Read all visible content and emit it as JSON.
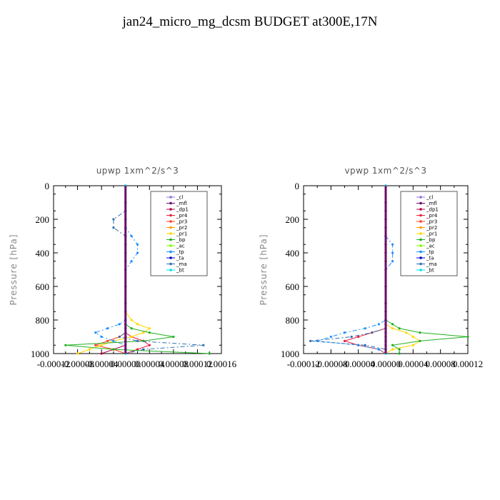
{
  "title": "jan24_micro_mg_dcsm  BUDGET at300E,17N",
  "chart_data": [
    {
      "type": "line",
      "title": "upwp   1xm^2/s^3",
      "ylabel": "Pressure [hPa]",
      "xlabel": "",
      "xlim": [
        -0.00012,
        0.00016
      ],
      "ylim": [
        1000,
        0
      ],
      "x_ticks": [
        "-0.00012",
        "-0.00008",
        "-0.00004",
        "0.00000",
        "0.00004",
        "0.00008",
        "0.00012",
        "0.00016"
      ],
      "y_ticks": [
        "0",
        "200",
        "400",
        "600",
        "800",
        "1000"
      ],
      "legend_position": "top-right",
      "pressure_levels": [
        0,
        100,
        150,
        200,
        250,
        300,
        350,
        400,
        450,
        500,
        600,
        700,
        750,
        800,
        825,
        850,
        875,
        900,
        925,
        950,
        975,
        1000
      ],
      "series": [
        {
          "name": "_cl",
          "color": "#9370db",
          "values": [
            0,
            0,
            0,
            0,
            0,
            0,
            0,
            0,
            0,
            0,
            0,
            0,
            0,
            0,
            0,
            0,
            0,
            0,
            0,
            0,
            0,
            0
          ]
        },
        {
          "name": "_mfl",
          "color": "#6a0d6a",
          "values": [
            0,
            0,
            0,
            0,
            0,
            0,
            0,
            0,
            0,
            0,
            0,
            0,
            0,
            0,
            0,
            0,
            0,
            0,
            0,
            0,
            0,
            0
          ]
        },
        {
          "name": "_dp1",
          "color": "#b0004a",
          "values": [
            0,
            0,
            0,
            0,
            0,
            0,
            0,
            0,
            0,
            0,
            0,
            0,
            0,
            0,
            0,
            0,
            0,
            0,
            0,
            0,
            -2e-05,
            -4e-05
          ]
        },
        {
          "name": "_pr4",
          "color": "#e8203c",
          "values": [
            0,
            0,
            0,
            0,
            0,
            0,
            0,
            0,
            0,
            0,
            0,
            0,
            0,
            0,
            0,
            0,
            0,
            1e-05,
            3e-05,
            4e-05,
            2e-05,
            0
          ]
        },
        {
          "name": "_pr3",
          "color": "#ff4020",
          "values": [
            0,
            0,
            0,
            0,
            0,
            0,
            0,
            0,
            0,
            0,
            0,
            0,
            0,
            0,
            0,
            0,
            0,
            -1e-05,
            -3e-05,
            -5e-05,
            -2e-05,
            0
          ]
        },
        {
          "name": "_pr2",
          "color": "#ff9900",
          "values": [
            0,
            0,
            0,
            0,
            0,
            0,
            0,
            0,
            0,
            0,
            0,
            0,
            0,
            0,
            0,
            0,
            0,
            0,
            0,
            0,
            0,
            0
          ]
        },
        {
          "name": "_pr1",
          "color": "#ffd700",
          "values": [
            0,
            0,
            0,
            0,
            0,
            0,
            0,
            0,
            0,
            0,
            0,
            0,
            0,
            1e-05,
            2e-05,
            4e-05,
            3e-05,
            1e-05,
            -2e-05,
            -4e-05,
            -6e-05,
            -8e-05
          ]
        },
        {
          "name": "_bp",
          "color": "#20b020",
          "values": [
            0,
            0,
            0,
            0,
            0,
            0,
            0,
            0,
            0,
            0,
            0,
            0,
            0,
            0,
            0,
            1e-05,
            4e-05,
            8e-05,
            3e-05,
            -0.0001,
            -2e-05,
            0.00014
          ]
        },
        {
          "name": "_ac",
          "color": "#7cfc00",
          "values": [
            0,
            0,
            0,
            0,
            0,
            0,
            0,
            0,
            0,
            0,
            0,
            0,
            0,
            0,
            0,
            0,
            0,
            0,
            0,
            0,
            0,
            0
          ]
        },
        {
          "name": "_tp",
          "color": "#1e90ff",
          "values": [
            0,
            0,
            0,
            0,
            0,
            1e-05,
            2e-05,
            2e-05,
            1e-05,
            0,
            0,
            0,
            0,
            0,
            -1e-05,
            -3e-05,
            -5e-05,
            -4e-05,
            -2e-05,
            0,
            0,
            0
          ]
        },
        {
          "name": "_ta",
          "color": "#0000cd",
          "values": [
            0,
            0,
            0,
            0,
            0,
            0,
            0,
            0,
            0,
            0,
            0,
            0,
            0,
            0,
            0,
            0,
            0,
            0,
            0,
            0,
            0,
            0
          ]
        },
        {
          "name": "_ma",
          "color": "#3070b0",
          "values": [
            0,
            0,
            0,
            -2e-05,
            -2e-05,
            0,
            0,
            0,
            0,
            0,
            0,
            0,
            0,
            0,
            0,
            0,
            0,
            -1e-05,
            2e-05,
            0.00013,
            3e-05,
            0
          ]
        },
        {
          "name": "_bt",
          "color": "#00e0ee",
          "values": [
            0,
            0,
            0,
            0,
            0,
            0,
            0,
            0,
            0,
            0,
            0,
            0,
            0,
            0,
            0,
            0,
            0,
            0,
            0,
            0,
            0,
            0
          ]
        }
      ]
    },
    {
      "type": "line",
      "title": "vpwp   1xm^2/s^3",
      "ylabel": "Pressure [hPa]",
      "xlabel": "",
      "xlim": [
        -0.00012,
        0.00012
      ],
      "ylim": [
        1000,
        0
      ],
      "x_ticks": [
        "-0.00012",
        "-0.00008",
        "-0.00004",
        "0.00000",
        "0.00004",
        "0.00008",
        "0.00012"
      ],
      "y_ticks": [
        "0",
        "200",
        "400",
        "600",
        "800",
        "1000"
      ],
      "legend_position": "top-right",
      "pressure_levels": [
        0,
        100,
        150,
        200,
        250,
        300,
        350,
        400,
        450,
        500,
        600,
        700,
        750,
        800,
        825,
        850,
        875,
        900,
        925,
        950,
        975,
        1000
      ],
      "series": [
        {
          "name": "_cl",
          "color": "#9370db",
          "values": [
            0,
            0,
            0,
            0,
            0,
            0,
            0,
            0,
            0,
            0,
            0,
            0,
            0,
            0,
            0,
            0,
            0,
            0,
            0,
            0,
            0,
            0
          ]
        },
        {
          "name": "_mfl",
          "color": "#6a0d6a",
          "values": [
            0,
            0,
            0,
            0,
            0,
            0,
            0,
            0,
            0,
            0,
            0,
            0,
            0,
            0,
            0,
            0,
            0,
            0,
            0,
            0,
            0,
            0
          ]
        },
        {
          "name": "_dp1",
          "color": "#b0004a",
          "values": [
            0,
            0,
            0,
            0,
            0,
            0,
            0,
            0,
            0,
            0,
            0,
            0,
            0,
            0,
            0,
            0,
            0,
            0,
            0,
            0,
            0,
            0
          ]
        },
        {
          "name": "_pr4",
          "color": "#e8203c",
          "values": [
            0,
            0,
            0,
            0,
            0,
            0,
            0,
            0,
            0,
            0,
            0,
            0,
            0,
            0,
            0,
            0,
            -2e-05,
            -4e-05,
            -6e-05,
            -4e-05,
            -1e-05,
            0
          ]
        },
        {
          "name": "_pr3",
          "color": "#ff4020",
          "values": [
            0,
            0,
            0,
            0,
            0,
            0,
            0,
            0,
            0,
            0,
            0,
            0,
            0,
            0,
            0,
            0,
            0,
            0,
            0,
            0,
            0,
            0
          ]
        },
        {
          "name": "_pr2",
          "color": "#ff9900",
          "values": [
            0,
            0,
            0,
            0,
            0,
            0,
            0,
            0,
            0,
            0,
            0,
            0,
            0,
            0,
            0,
            0,
            0,
            0,
            0,
            0,
            0,
            0
          ]
        },
        {
          "name": "_pr1",
          "color": "#ffd700",
          "values": [
            0,
            0,
            0,
            0,
            0,
            0,
            0,
            0,
            0,
            0,
            0,
            0,
            0,
            0,
            0,
            1e-05,
            3e-05,
            4e-05,
            5e-05,
            4e-05,
            1e-05,
            0
          ]
        },
        {
          "name": "_bp",
          "color": "#20b020",
          "values": [
            0,
            0,
            0,
            0,
            0,
            0,
            0,
            0,
            0,
            0,
            0,
            0,
            0,
            0,
            1e-05,
            2e-05,
            5e-05,
            0.00012,
            5e-05,
            1e-05,
            2e-05,
            2e-05
          ]
        },
        {
          "name": "_ac",
          "color": "#7cfc00",
          "values": [
            0,
            0,
            0,
            0,
            0,
            0,
            0,
            0,
            0,
            0,
            0,
            0,
            0,
            0,
            0,
            0,
            0,
            0,
            0,
            0,
            0,
            0
          ]
        },
        {
          "name": "_tp",
          "color": "#1e90ff",
          "values": [
            0,
            0,
            0,
            0,
            0,
            0,
            1e-05,
            1e-05,
            1e-05,
            0,
            0,
            0,
            0,
            0,
            -1e-05,
            -3e-05,
            -6e-05,
            -8e-05,
            -0.0001,
            -4e-05,
            -1e-05,
            0
          ]
        },
        {
          "name": "_ta",
          "color": "#0000cd",
          "values": [
            0,
            0,
            0,
            0,
            0,
            0,
            0,
            0,
            0,
            0,
            0,
            0,
            0,
            0,
            0,
            0,
            0,
            0,
            0,
            0,
            0,
            0
          ]
        },
        {
          "name": "_ma",
          "color": "#3070b0",
          "values": [
            0,
            0,
            0,
            0,
            0,
            0,
            0,
            0,
            0,
            0,
            0,
            0,
            0,
            0,
            0,
            0,
            -2e-05,
            -5e-05,
            -0.00011,
            -3e-05,
            0,
            0
          ]
        },
        {
          "name": "_bt",
          "color": "#00e0ee",
          "values": [
            0,
            0,
            0,
            0,
            0,
            0,
            0,
            0,
            0,
            0,
            0,
            0,
            0,
            0,
            0,
            0,
            0,
            0,
            0,
            0,
            0,
            0
          ]
        }
      ]
    }
  ]
}
